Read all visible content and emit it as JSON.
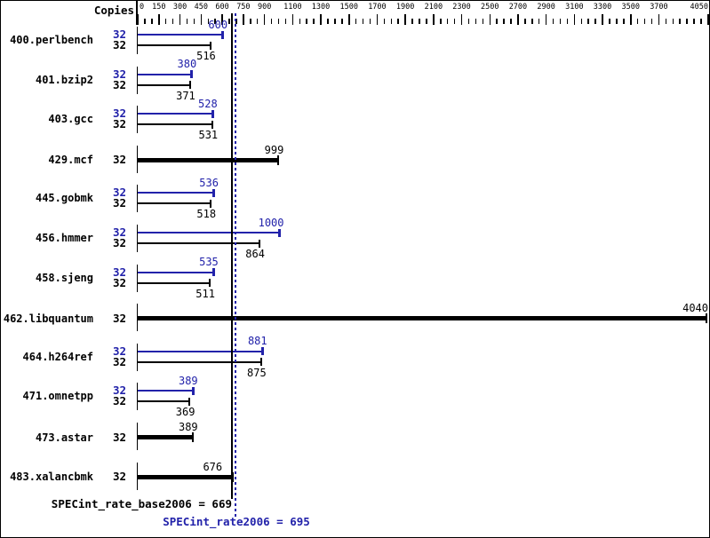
{
  "chart_data": {
    "type": "bar",
    "orientation": "horizontal",
    "title": "",
    "copies_header": "Copies",
    "axis": {
      "min": 0,
      "max": 4050,
      "minor_tick_step": 50,
      "labeled_ticks": [
        0,
        150,
        300,
        450,
        600,
        750,
        900,
        1100,
        1300,
        1500,
        1700,
        1900,
        2100,
        2300,
        2500,
        2700,
        2900,
        3100,
        3300,
        3500,
        3700,
        4050
      ],
      "position": "top",
      "grid": false
    },
    "colors": {
      "peak": "#2222aa",
      "base": "#000000",
      "background": "#ffffff"
    },
    "legend": {
      "peak_style": "thin blue bar, value label above",
      "base_style": "thin black bar, value label below",
      "basepeak_style": "thick black bar, single result"
    },
    "benchmarks": [
      {
        "name": "400.perlbench",
        "rows": [
          {
            "kind": "peak",
            "copies": 32,
            "ratio": 600
          },
          {
            "kind": "base",
            "copies": 32,
            "ratio": 516
          }
        ]
      },
      {
        "name": "401.bzip2",
        "rows": [
          {
            "kind": "peak",
            "copies": 32,
            "ratio": 380
          },
          {
            "kind": "base",
            "copies": 32,
            "ratio": 371
          }
        ]
      },
      {
        "name": "403.gcc",
        "rows": [
          {
            "kind": "peak",
            "copies": 32,
            "ratio": 528
          },
          {
            "kind": "base",
            "copies": 32,
            "ratio": 531
          }
        ]
      },
      {
        "name": "429.mcf",
        "rows": [
          {
            "kind": "basepeak",
            "copies": 32,
            "ratio": 999
          }
        ]
      },
      {
        "name": "445.gobmk",
        "rows": [
          {
            "kind": "peak",
            "copies": 32,
            "ratio": 536
          },
          {
            "kind": "base",
            "copies": 32,
            "ratio": 518
          }
        ]
      },
      {
        "name": "456.hmmer",
        "rows": [
          {
            "kind": "peak",
            "copies": 32,
            "ratio": 1000
          },
          {
            "kind": "base",
            "copies": 32,
            "ratio": 864
          }
        ]
      },
      {
        "name": "458.sjeng",
        "rows": [
          {
            "kind": "peak",
            "copies": 32,
            "ratio": 535
          },
          {
            "kind": "base",
            "copies": 32,
            "ratio": 511
          }
        ]
      },
      {
        "name": "462.libquantum",
        "rows": [
          {
            "kind": "basepeak",
            "copies": 32,
            "ratio": 4040
          }
        ]
      },
      {
        "name": "464.h264ref",
        "rows": [
          {
            "kind": "peak",
            "copies": 32,
            "ratio": 881
          },
          {
            "kind": "base",
            "copies": 32,
            "ratio": 875
          }
        ]
      },
      {
        "name": "471.omnetpp",
        "rows": [
          {
            "kind": "peak",
            "copies": 32,
            "ratio": 389
          },
          {
            "kind": "base",
            "copies": 32,
            "ratio": 369
          }
        ]
      },
      {
        "name": "473.astar",
        "rows": [
          {
            "kind": "basepeak",
            "copies": 32,
            "ratio": 389
          }
        ]
      },
      {
        "name": "483.xalancbmk",
        "rows": [
          {
            "kind": "basepeak",
            "copies": 32,
            "ratio": 676
          }
        ]
      }
    ],
    "reference_lines": [
      {
        "metric": "SPECint_rate_base2006",
        "value": 669,
        "style": "solid",
        "color": "#000000"
      },
      {
        "metric": "SPECint_rate2006",
        "value": 695,
        "style": "dotted",
        "color": "#2222aa"
      }
    ],
    "summary": [
      {
        "metric": "SPECint_rate_base2006",
        "separator": " = ",
        "value": 669,
        "color": "#000000"
      },
      {
        "metric": "SPECint_rate2006",
        "separator": " = ",
        "value": 695,
        "color": "#2222aa"
      }
    ]
  }
}
